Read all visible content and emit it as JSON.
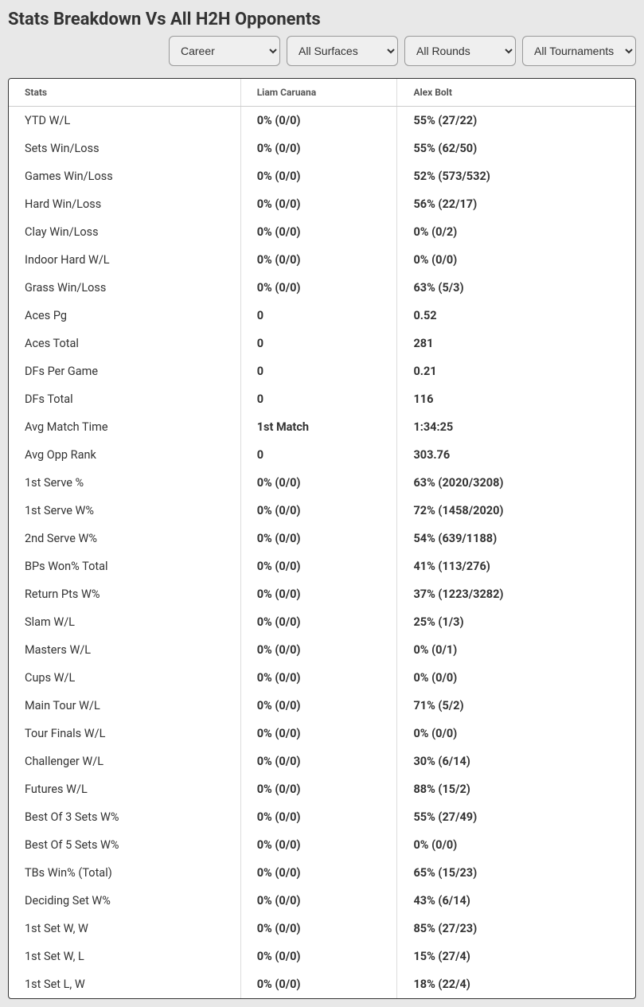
{
  "title": "Stats Breakdown Vs All H2H Opponents",
  "filters": {
    "period": "Career",
    "surface": "All Surfaces",
    "round": "All Rounds",
    "tournament": "All Tournaments"
  },
  "table": {
    "headers": {
      "stats": "Stats",
      "player1": "Liam Caruana",
      "player2": "Alex Bolt"
    },
    "rows": [
      {
        "stat": "YTD W/L",
        "p1": "0% (0/0)",
        "p2": "55% (27/22)"
      },
      {
        "stat": "Sets Win/Loss",
        "p1": "0% (0/0)",
        "p2": "55% (62/50)"
      },
      {
        "stat": "Games Win/Loss",
        "p1": "0% (0/0)",
        "p2": "52% (573/532)"
      },
      {
        "stat": "Hard Win/Loss",
        "p1": "0% (0/0)",
        "p2": "56% (22/17)"
      },
      {
        "stat": "Clay Win/Loss",
        "p1": "0% (0/0)",
        "p2": "0% (0/2)"
      },
      {
        "stat": "Indoor Hard W/L",
        "p1": "0% (0/0)",
        "p2": "0% (0/0)"
      },
      {
        "stat": "Grass Win/Loss",
        "p1": "0% (0/0)",
        "p2": "63% (5/3)"
      },
      {
        "stat": "Aces Pg",
        "p1": "0",
        "p2": "0.52"
      },
      {
        "stat": "Aces Total",
        "p1": "0",
        "p2": "281"
      },
      {
        "stat": "DFs Per Game",
        "p1": "0",
        "p2": "0.21"
      },
      {
        "stat": "DFs Total",
        "p1": "0",
        "p2": "116"
      },
      {
        "stat": "Avg Match Time",
        "p1": "1st Match",
        "p2": "1:34:25"
      },
      {
        "stat": "Avg Opp Rank",
        "p1": "0",
        "p2": "303.76"
      },
      {
        "stat": "1st Serve %",
        "p1": "0% (0/0)",
        "p2": "63% (2020/3208)"
      },
      {
        "stat": "1st Serve W%",
        "p1": "0% (0/0)",
        "p2": "72% (1458/2020)"
      },
      {
        "stat": "2nd Serve W%",
        "p1": "0% (0/0)",
        "p2": "54% (639/1188)"
      },
      {
        "stat": "BPs Won% Total",
        "p1": "0% (0/0)",
        "p2": "41% (113/276)"
      },
      {
        "stat": "Return Pts W%",
        "p1": "0% (0/0)",
        "p2": "37% (1223/3282)"
      },
      {
        "stat": "Slam W/L",
        "p1": "0% (0/0)",
        "p2": "25% (1/3)"
      },
      {
        "stat": "Masters W/L",
        "p1": "0% (0/0)",
        "p2": "0% (0/1)"
      },
      {
        "stat": "Cups W/L",
        "p1": "0% (0/0)",
        "p2": "0% (0/0)"
      },
      {
        "stat": "Main Tour W/L",
        "p1": "0% (0/0)",
        "p2": "71% (5/2)"
      },
      {
        "stat": "Tour Finals W/L",
        "p1": "0% (0/0)",
        "p2": "0% (0/0)"
      },
      {
        "stat": "Challenger W/L",
        "p1": "0% (0/0)",
        "p2": "30% (6/14)"
      },
      {
        "stat": "Futures W/L",
        "p1": "0% (0/0)",
        "p2": "88% (15/2)"
      },
      {
        "stat": "Best Of 3 Sets W%",
        "p1": "0% (0/0)",
        "p2": "55% (27/49)"
      },
      {
        "stat": "Best Of 5 Sets W%",
        "p1": "0% (0/0)",
        "p2": "0% (0/0)"
      },
      {
        "stat": "TBs Win% (Total)",
        "p1": "0% (0/0)",
        "p2": "65% (15/23)"
      },
      {
        "stat": "Deciding Set W%",
        "p1": "0% (0/0)",
        "p2": "43% (6/14)"
      },
      {
        "stat": "1st Set W, W",
        "p1": "0% (0/0)",
        "p2": "85% (27/23)"
      },
      {
        "stat": "1st Set W, L",
        "p1": "0% (0/0)",
        "p2": "15% (27/4)"
      },
      {
        "stat": "1st Set L, W",
        "p1": "0% (0/0)",
        "p2": "18% (22/4)"
      }
    ]
  }
}
